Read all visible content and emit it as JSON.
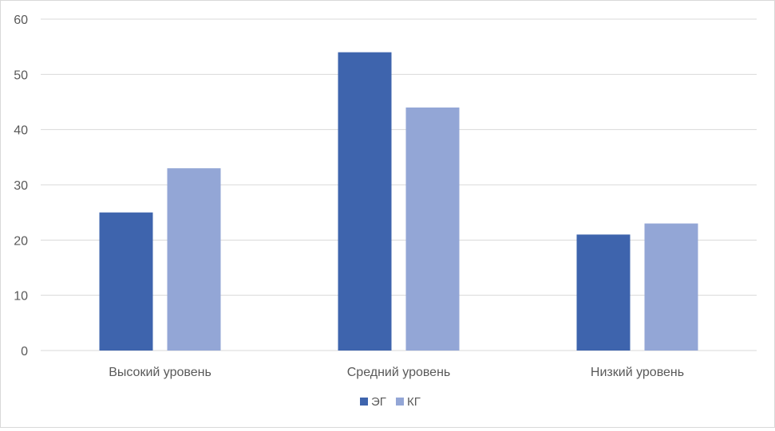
{
  "chart_data": {
    "type": "bar",
    "categories": [
      "Высокий уровень",
      "Средний уровень",
      "Низкий уровень"
    ],
    "series": [
      {
        "name": "ЭГ",
        "color": "#3e64ad",
        "values": [
          25,
          54,
          21
        ]
      },
      {
        "name": "КГ",
        "color": "#93a6d6",
        "values": [
          33,
          44,
          23
        ]
      }
    ],
    "yticks": [
      0,
      10,
      20,
      30,
      40,
      50,
      60
    ],
    "ylim": [
      0,
      60
    ],
    "grid": true,
    "legend": "bottom",
    "title": "",
    "xlabel": "",
    "ylabel": ""
  }
}
